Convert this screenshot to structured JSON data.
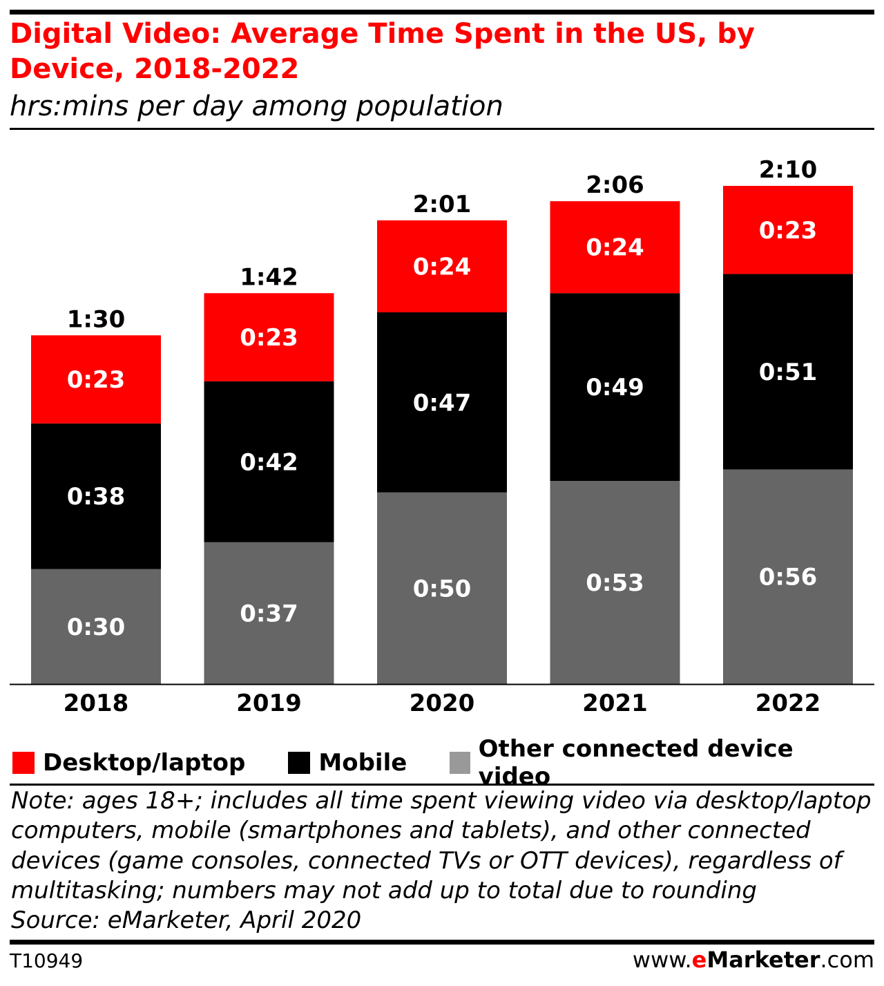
{
  "title": "Digital Video: Average Time Spent in the US, by Device, 2018-2022",
  "subtitle": "hrs:mins per day among population",
  "chart_data": {
    "type": "bar",
    "stacked": true,
    "title": "Digital Video: Average Time Spent in the US, by Device, 2018-2022",
    "subtitle": "hrs:mins per day among population",
    "categories": [
      "2018",
      "2019",
      "2020",
      "2021",
      "2022"
    ],
    "series": [
      {
        "name": "Other connected device video",
        "color": "#666666",
        "values": [
          30,
          37,
          50,
          53,
          56
        ],
        "labels": [
          "0:30",
          "0:37",
          "0:50",
          "0:53",
          "0:56"
        ]
      },
      {
        "name": "Mobile",
        "color": "#000000",
        "values": [
          38,
          42,
          47,
          49,
          51
        ],
        "labels": [
          "0:38",
          "0:42",
          "0:47",
          "0:49",
          "0:51"
        ]
      },
      {
        "name": "Desktop/laptop",
        "color": "#ff0000",
        "values": [
          23,
          23,
          24,
          24,
          23
        ],
        "labels": [
          "0:23",
          "0:23",
          "0:24",
          "0:24",
          "0:23"
        ]
      }
    ],
    "totals": [
      90,
      102,
      121,
      126,
      130
    ],
    "total_labels": [
      "1:30",
      "1:42",
      "2:01",
      "2:06",
      "2:10"
    ],
    "unit": "minutes",
    "ylim": [
      0,
      130
    ],
    "grid": false,
    "legend_position": "bottom"
  },
  "legend": [
    {
      "label": "Desktop/laptop",
      "color": "#ff0000"
    },
    {
      "label": "Mobile",
      "color": "#000000"
    },
    {
      "label": "Other connected device video",
      "color": "#666666"
    }
  ],
  "note": "Note: ages 18+; includes all time spent viewing video via desktop/laptop computers, mobile (smartphones and tablets), and other connected devices (game consoles, connected TVs or OTT devices), regardless of multitasking; numbers may not add up to total due to rounding",
  "source": "Source: eMarketer, April 2020",
  "footer": {
    "code": "T10949",
    "logo_prefix": "www.",
    "logo_e": "e",
    "logo_brand": "Marketer",
    "logo_suffix": ".com"
  }
}
